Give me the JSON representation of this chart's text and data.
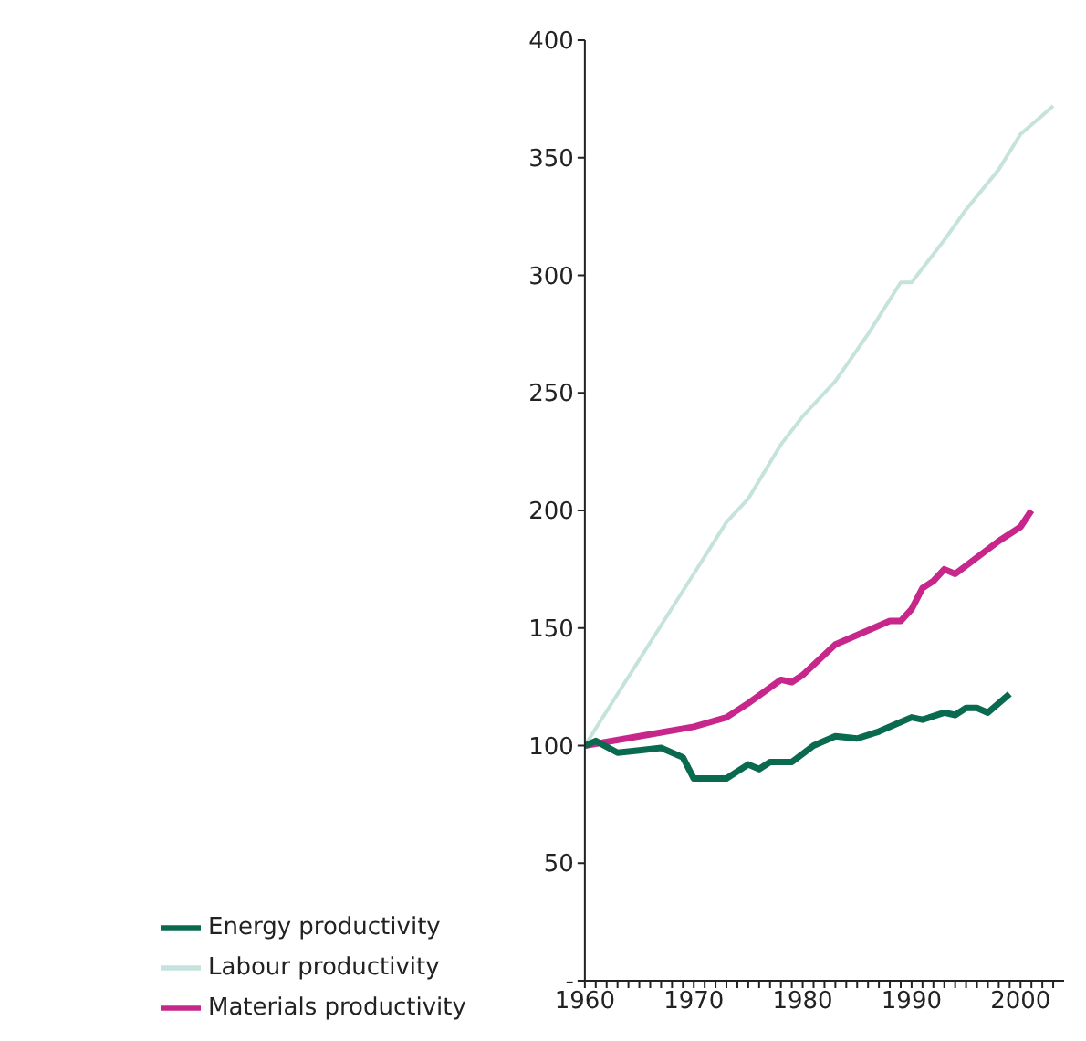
{
  "chart_data": {
    "type": "line",
    "xlim": [
      1960,
      2004
    ],
    "ylim": [
      0,
      400
    ],
    "xticks": [
      1960,
      {
        "value": 1961,
        "label": null
      },
      {
        "value": 1962,
        "label": null
      },
      {
        "value": 1963,
        "label": null
      },
      {
        "value": 1964,
        "label": null
      },
      {
        "value": 1965,
        "label": null
      },
      {
        "value": 1966,
        "label": null
      },
      {
        "value": 1967,
        "label": null
      },
      {
        "value": 1968,
        "label": null
      },
      {
        "value": 1969,
        "label": null
      },
      1970,
      {
        "value": 1971,
        "label": null
      },
      {
        "value": 1972,
        "label": null
      },
      {
        "value": 1973,
        "label": null
      },
      {
        "value": 1974,
        "label": null
      },
      {
        "value": 1975,
        "label": null
      },
      {
        "value": 1976,
        "label": null
      },
      {
        "value": 1977,
        "label": null
      },
      {
        "value": 1978,
        "label": null
      },
      {
        "value": 1979,
        "label": null
      },
      1980,
      {
        "value": 1981,
        "label": null
      },
      {
        "value": 1982,
        "label": null
      },
      {
        "value": 1983,
        "label": null
      },
      {
        "value": 1984,
        "label": null
      },
      {
        "value": 1985,
        "label": null
      },
      {
        "value": 1986,
        "label": null
      },
      {
        "value": 1987,
        "label": null
      },
      {
        "value": 1988,
        "label": null
      },
      {
        "value": 1989,
        "label": null
      },
      1990,
      {
        "value": 1991,
        "label": null
      },
      {
        "value": 1992,
        "label": null
      },
      {
        "value": 1993,
        "label": null
      },
      {
        "value": 1994,
        "label": null
      },
      {
        "value": 1995,
        "label": null
      },
      {
        "value": 1996,
        "label": null
      },
      {
        "value": 1997,
        "label": null
      },
      {
        "value": 1998,
        "label": null
      },
      {
        "value": 1999,
        "label": null
      },
      2000,
      {
        "value": 2001,
        "label": null
      },
      {
        "value": 2002,
        "label": null
      },
      {
        "value": 2003,
        "label": null
      }
    ],
    "yticks": [
      {
        "value": 0,
        "label": "-"
      },
      50,
      100,
      150,
      200,
      250,
      300,
      350,
      400
    ],
    "grid": false,
    "legend": "bottom",
    "marker": "none",
    "line_style": "solid",
    "series": [
      {
        "name": "Labour productivity",
        "color": "#c5e3dc",
        "x": [
          1960,
          1973,
          1975,
          1978,
          1980,
          1983,
          1986,
          1989,
          1990,
          1993,
          1995,
          1998,
          2000,
          2002,
          2003
        ],
        "values": [
          100,
          195,
          205,
          228,
          240,
          255,
          275,
          297,
          297,
          315,
          328,
          345,
          360,
          368,
          372
        ]
      },
      {
        "name": "Materials productivity",
        "color": "#c7268a",
        "x": [
          1960,
          1965,
          1970,
          1973,
          1975,
          1978,
          1979,
          1980,
          1983,
          1985,
          1988,
          1989,
          1990,
          1991,
          1992,
          1993,
          1994,
          1996,
          1998,
          2000,
          2001
        ],
        "values": [
          100,
          104,
          108,
          112,
          118,
          128,
          127,
          130,
          143,
          147,
          153,
          153,
          158,
          167,
          170,
          175,
          173,
          180,
          187,
          193,
          200
        ]
      },
      {
        "name": "Energy productivity",
        "color": "#0a6a4f",
        "x": [
          1960,
          1961,
          1963,
          1965,
          1967,
          1969,
          1970,
          1973,
          1975,
          1976,
          1977,
          1979,
          1981,
          1983,
          1985,
          1987,
          1989,
          1990,
          1991,
          1993,
          1994,
          1995,
          1996,
          1997,
          1998,
          1999
        ],
        "values": [
          100,
          102,
          97,
          98,
          99,
          95,
          86,
          86,
          92,
          90,
          93,
          93,
          100,
          104,
          103,
          106,
          110,
          112,
          111,
          114,
          113,
          116,
          116,
          114,
          118,
          122
        ]
      }
    ]
  }
}
